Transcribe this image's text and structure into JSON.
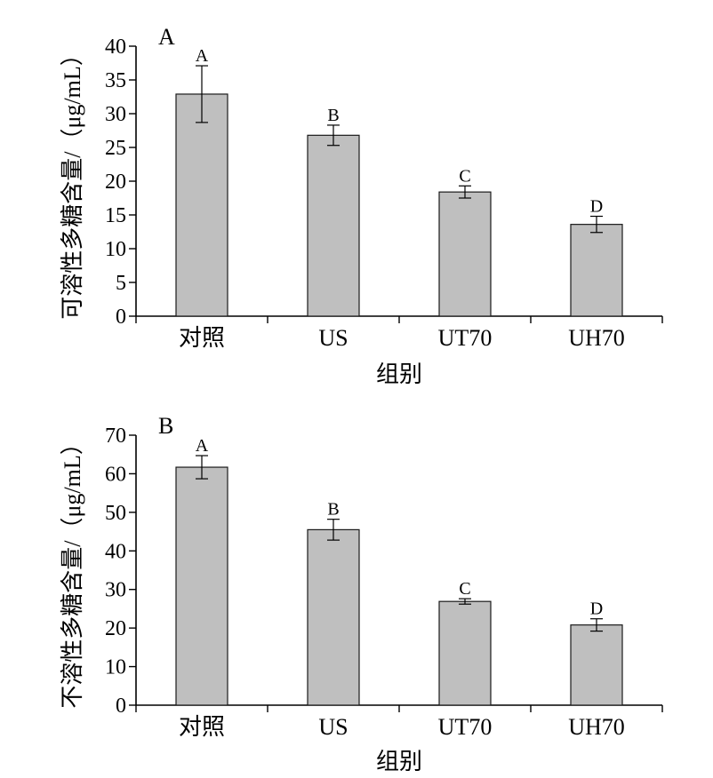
{
  "chart_data": [
    {
      "type": "bar",
      "panel_label": "A",
      "categories": [
        "对照",
        "US",
        "UT70",
        "UH70"
      ],
      "values": [
        32.9,
        26.8,
        18.4,
        13.6
      ],
      "errors": [
        4.2,
        1.5,
        0.9,
        1.2
      ],
      "significance": [
        "A",
        "B",
        "C",
        "D"
      ],
      "xlabel": "组别",
      "ylabel": "可溶性多糖含量/（μg/mL）",
      "ylim": [
        0,
        40
      ],
      "yticks": [
        0,
        5,
        10,
        15,
        20,
        25,
        30,
        35,
        40
      ],
      "grid": false
    },
    {
      "type": "bar",
      "panel_label": "B",
      "categories": [
        "对照",
        "US",
        "UT70",
        "UH70"
      ],
      "values": [
        61.7,
        45.5,
        26.9,
        20.8
      ],
      "errors": [
        3.0,
        2.7,
        0.7,
        1.6
      ],
      "significance": [
        "A",
        "B",
        "C",
        "D"
      ],
      "xlabel": "组别",
      "ylabel": "不溶性多糖含量/（μg/mL）",
      "ylim": [
        0,
        70
      ],
      "yticks": [
        0,
        10,
        20,
        30,
        40,
        50,
        60,
        70
      ],
      "grid": false
    }
  ]
}
